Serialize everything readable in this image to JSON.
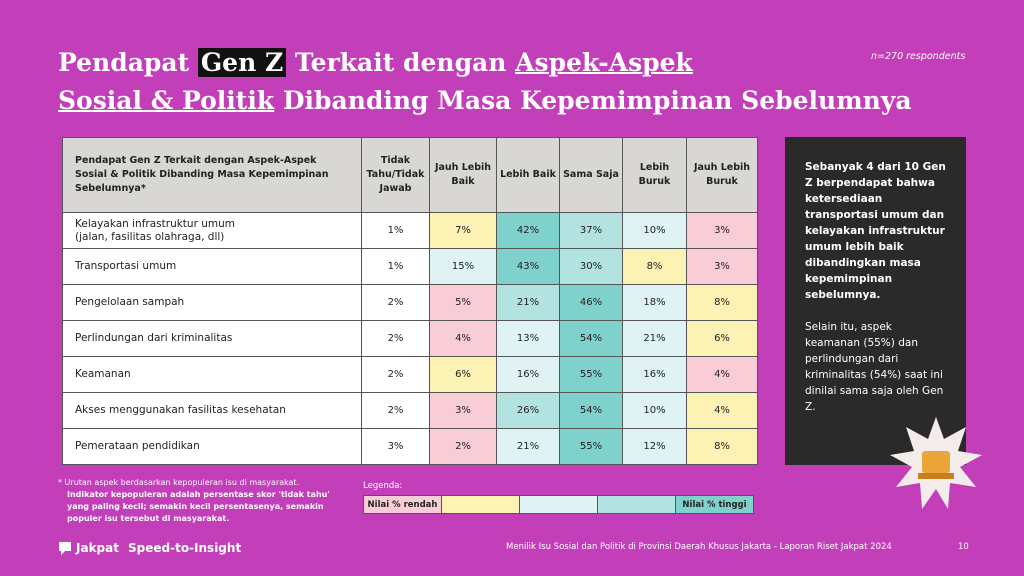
{
  "header": {
    "title": {
      "line1": [
        "Pendapat ",
        "Gen Z",
        " Terkait dengan ",
        "Aspek-Aspek"
      ],
      "line2": [
        "Sosial & Politik",
        " Dibanding Masa Kepemimpinan Sebelumnya"
      ]
    },
    "sample": "n=270 respondents"
  },
  "table": {
    "columns": [
      "Pendapat Gen Z Terkait dengan Aspek-Aspek Sosial & Politik Dibanding Masa Kepemimpinan Sebelumnya*",
      "Tidak Tahu/Tidak Jawab",
      "Jauh Lebih Baik",
      "Lebih Baik",
      "Sama Saja",
      "Lebih Buruk",
      "Jauh Lebih Buruk"
    ],
    "rows": [
      {
        "label": [
          "Kelayakan infrastruktur umum",
          "(jalan, fasilitas olahraga, dll)"
        ],
        "cells": [
          {
            "text": "1%",
            "color": "#ffffff"
          },
          {
            "text": "7%",
            "color": "#fbf2b4"
          },
          {
            "text": "42%",
            "color": "#7fd1cc"
          },
          {
            "text": "37%",
            "color": "#b2e3e1"
          },
          {
            "text": "10%",
            "color": "#dff2f4"
          },
          {
            "text": "3%",
            "color": "#f9cdd6"
          }
        ]
      },
      {
        "label": [
          "Transportasi umum"
        ],
        "cells": [
          {
            "text": "1%",
            "color": "#ffffff"
          },
          {
            "text": "15%",
            "color": "#dff2f4"
          },
          {
            "text": "43%",
            "color": "#7fd1cc"
          },
          {
            "text": "30%",
            "color": "#b2e3e1"
          },
          {
            "text": "8%",
            "color": "#fbf2b4"
          },
          {
            "text": "3%",
            "color": "#f9cdd6"
          }
        ]
      },
      {
        "label": [
          "Pengelolaan sampah"
        ],
        "cells": [
          {
            "text": "2%",
            "color": "#ffffff"
          },
          {
            "text": "5%",
            "color": "#f9cdd6"
          },
          {
            "text": "21%",
            "color": "#b2e3e1"
          },
          {
            "text": "46%",
            "color": "#7fd1cc"
          },
          {
            "text": "18%",
            "color": "#dff2f4"
          },
          {
            "text": "8%",
            "color": "#fbf2b4"
          }
        ]
      },
      {
        "label": [
          "Perlindungan dari kriminalitas"
        ],
        "cells": [
          {
            "text": "2%",
            "color": "#ffffff"
          },
          {
            "text": "4%",
            "color": "#f9cdd6"
          },
          {
            "text": "13%",
            "color": "#dff2f4"
          },
          {
            "text": "54%",
            "color": "#7fd1cc"
          },
          {
            "text": "21%",
            "color": "#dff2f4"
          },
          {
            "text": "6%",
            "color": "#fbf2b4"
          }
        ]
      },
      {
        "label": [
          "Keamanan"
        ],
        "cells": [
          {
            "text": "2%",
            "color": "#ffffff"
          },
          {
            "text": "6%",
            "color": "#fbf2b4"
          },
          {
            "text": "16%",
            "color": "#dff2f4"
          },
          {
            "text": "55%",
            "color": "#7fd1cc"
          },
          {
            "text": "16%",
            "color": "#dff2f4"
          },
          {
            "text": "4%",
            "color": "#f9cdd6"
          }
        ]
      },
      {
        "label": [
          "Akses menggunakan fasilitas kesehatan"
        ],
        "cells": [
          {
            "text": "2%",
            "color": "#ffffff"
          },
          {
            "text": "3%",
            "color": "#f9cdd6"
          },
          {
            "text": "26%",
            "color": "#b2e3e1"
          },
          {
            "text": "54%",
            "color": "#7fd1cc"
          },
          {
            "text": "10%",
            "color": "#dff2f4"
          },
          {
            "text": "4%",
            "color": "#fbf2b4"
          }
        ]
      },
      {
        "label": [
          "Pemerataan pendidikan"
        ],
        "cells": [
          {
            "text": "3%",
            "color": "#ffffff"
          },
          {
            "text": "2%",
            "color": "#f9cdd6"
          },
          {
            "text": "21%",
            "color": "#dff2f4"
          },
          {
            "text": "55%",
            "color": "#7fd1cc"
          },
          {
            "text": "12%",
            "color": "#dff2f4"
          },
          {
            "text": "8%",
            "color": "#fbf2b4"
          }
        ]
      }
    ]
  },
  "note": {
    "line1": "* Urutan aspek berdasarkan kepopuleran isu di masyarakat.",
    "line2": "Indikator kepopuleran adalah persentase skor 'tidak tahu' yang paling kecil; semakin kecil persentasenya, semakin populer isu tersebut di masyarakat."
  },
  "legend": {
    "title": "Legenda:",
    "boxes": [
      {
        "label": "Nilai % rendah",
        "color": "#f9cdd6"
      },
      {
        "color": "#fbf2b4"
      },
      {
        "color": "#dff2f4"
      },
      {
        "color": "#b2e3e1"
      },
      {
        "label": "Nilai % tinggi",
        "color": "#7fd1cc"
      }
    ]
  },
  "insight": {
    "bold": "Sebanyak 4 dari 10 Gen Z berpendapat bahwa ketersediaan transportasi umum dan kelayakan infrastruktur umum lebih baik dibandingkan masa kepemimpinan sebelumnya.",
    "normal": "Selain itu, aspek keamanan (55%) dan perlindungan dari kriminalitas (54%) saat ini dinilai sama saja oleh Gen Z."
  },
  "footer": {
    "brand": "Jakpat",
    "tagline": "Speed-to-Insight",
    "report": "Menilik Isu Sosial dan Politik di Provinsi Daerah Khusus Jakarta - Laporan Riset Jakpat 2024",
    "page": "10"
  }
}
